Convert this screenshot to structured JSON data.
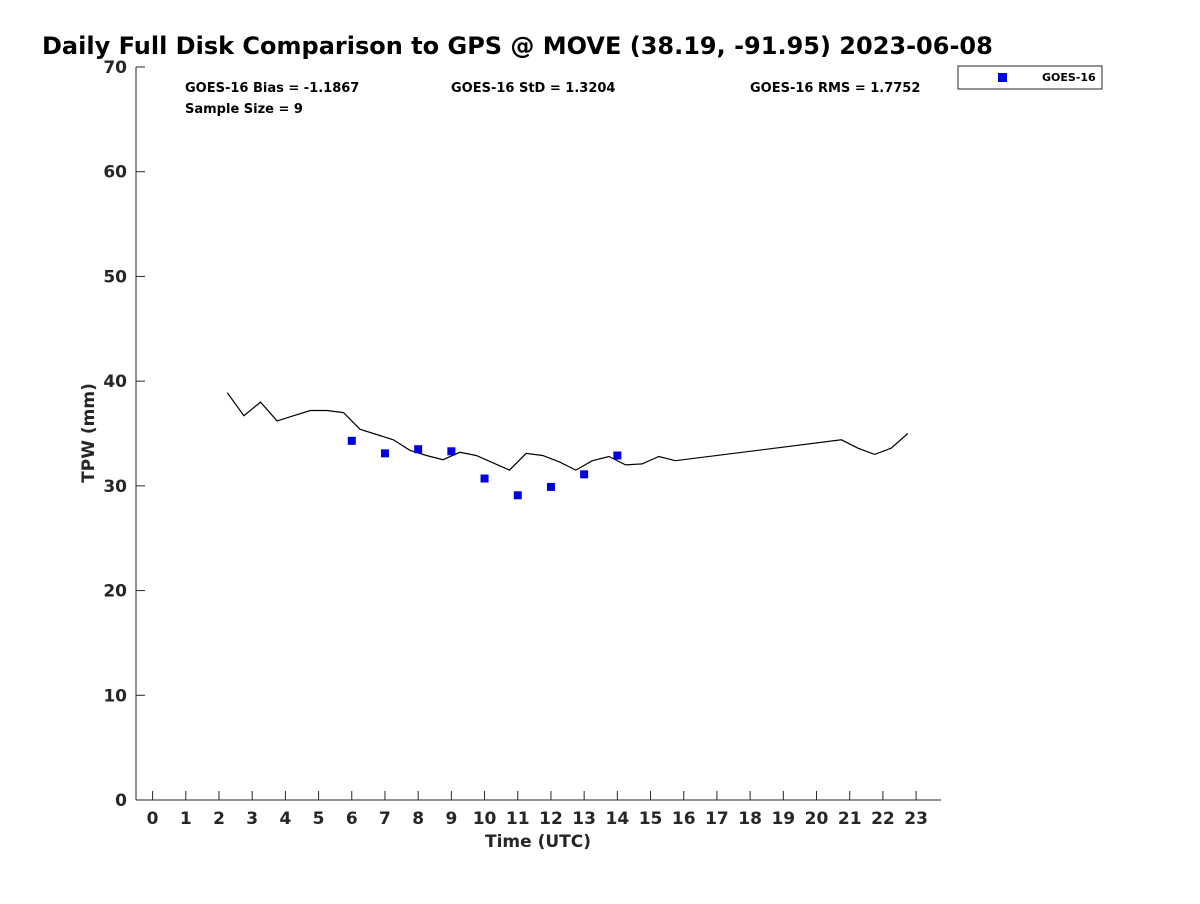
{
  "chart_data": {
    "type": "scatter",
    "title": "Daily Full Disk Comparison to GPS @ MOVE (38.19, -91.95) 2023-06-08",
    "xlabel": "Time (UTC)",
    "ylabel": "TPW (mm)",
    "xlim": [
      -0.5,
      23.75
    ],
    "ylim": [
      0,
      70
    ],
    "x_ticks": [
      0,
      1,
      2,
      3,
      4,
      5,
      6,
      7,
      8,
      9,
      10,
      11,
      12,
      13,
      14,
      15,
      16,
      17,
      18,
      19,
      20,
      21,
      22,
      23
    ],
    "y_ticks": [
      0,
      10,
      20,
      30,
      40,
      50,
      60,
      70
    ],
    "grid": false,
    "legend_position": "top-right (outside plot area)",
    "stats": {
      "bias": "GOES-16 Bias = -1.1867",
      "std": "GOES-16 StD = 1.3204",
      "rms": "GOES-16 RMS = 1.7752",
      "sample_size": "Sample Size = 9"
    },
    "series": [
      {
        "name": "GOES-16",
        "kind": "scatter",
        "marker": "square",
        "color": "#0000e0",
        "x": [
          6,
          7,
          8,
          9,
          10,
          11,
          12,
          13,
          14
        ],
        "y": [
          34.3,
          33.1,
          33.5,
          33.3,
          30.7,
          29.1,
          29.9,
          31.1,
          32.9
        ]
      },
      {
        "kind": "line",
        "color": "#000000",
        "x": [
          2.25,
          2.75,
          3.25,
          3.75,
          4.25,
          4.75,
          5.25,
          5.75,
          6.25,
          6.75,
          7.25,
          7.75,
          8.25,
          8.75,
          9.25,
          9.75,
          10.25,
          10.75,
          11.25,
          11.75,
          12.25,
          12.75,
          13.25,
          13.75,
          14.25,
          14.75,
          15.25,
          15.75,
          20.75,
          21.25,
          21.75,
          22.25,
          22.75
        ],
        "y": [
          38.9,
          36.7,
          38.0,
          36.2,
          36.7,
          37.2,
          37.2,
          37.0,
          35.4,
          34.9,
          34.4,
          33.4,
          32.9,
          32.5,
          33.2,
          32.9,
          32.2,
          31.5,
          33.1,
          32.9,
          32.3,
          31.5,
          32.4,
          32.8,
          32.0,
          32.1,
          32.8,
          32.4,
          34.4,
          33.6,
          33.0,
          33.6,
          35.0
        ]
      }
    ]
  }
}
